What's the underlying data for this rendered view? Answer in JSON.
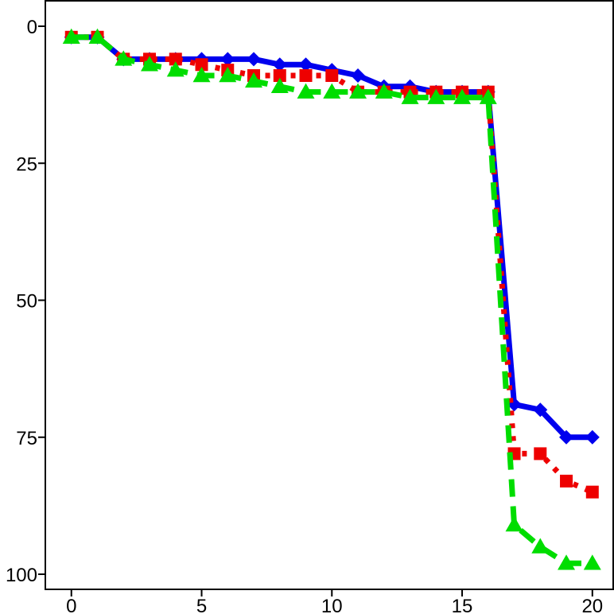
{
  "chart_data": {
    "type": "line",
    "title": "",
    "xlabel": "",
    "ylabel": "",
    "xlim": [
      -1,
      20.8
    ],
    "ylim": [
      0,
      100
    ],
    "y_inverted": true,
    "grid": false,
    "x_ticks": [
      0,
      5,
      10,
      15,
      20
    ],
    "x_tick_labels": [
      "0",
      "5",
      "10",
      "15",
      "20"
    ],
    "y_ticks": [
      0,
      25,
      50,
      75,
      100
    ],
    "y_tick_labels": [
      "0",
      "25",
      "50",
      "75",
      "100"
    ],
    "x": [
      0,
      1,
      2,
      3,
      4,
      5,
      6,
      7,
      8,
      9,
      10,
      11,
      12,
      13,
      14,
      15,
      16,
      17,
      18,
      19,
      20
    ],
    "series": [
      {
        "color": "#0000ee",
        "line_style": "solid",
        "marker": "diamond",
        "values": [
          2,
          2,
          6,
          6,
          6,
          6,
          6,
          6,
          7,
          7,
          8,
          9,
          11,
          11,
          12,
          12,
          12,
          69,
          70,
          75,
          75
        ]
      },
      {
        "color": "#ee0000",
        "line_style": "dotted",
        "marker": "square",
        "values": [
          2,
          2,
          6,
          6,
          6,
          7,
          8,
          9,
          9,
          9,
          9,
          12,
          12,
          12,
          12,
          12,
          12,
          78,
          78,
          83,
          85
        ]
      },
      {
        "color": "#00dd00",
        "line_style": "dashed",
        "marker": "triangle",
        "values": [
          2,
          2,
          6,
          7,
          8,
          9,
          9,
          10,
          11,
          12,
          12,
          12,
          12,
          13,
          13,
          13,
          13,
          91,
          95,
          98,
          98
        ]
      }
    ]
  }
}
